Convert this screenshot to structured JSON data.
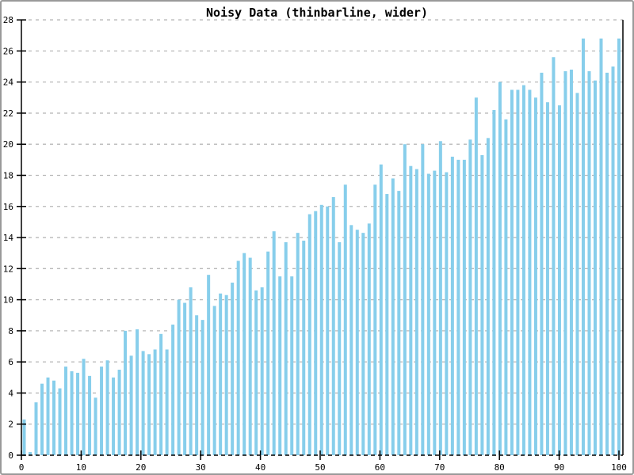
{
  "window": {
    "background": "#ffffff",
    "border_color": "#9a9a9a"
  },
  "chart_data": {
    "type": "bar",
    "title": "Noisy Data (thinbarline, wider)",
    "xlabel": "",
    "ylabel": "",
    "xlim": [
      0,
      100
    ],
    "ylim": [
      0,
      28
    ],
    "xticks": [
      0,
      10,
      20,
      30,
      40,
      50,
      60,
      70,
      80,
      90,
      100
    ],
    "yticks": [
      0,
      2,
      4,
      6,
      8,
      10,
      12,
      14,
      16,
      18,
      20,
      22,
      24,
      26,
      28
    ],
    "grid": "horizontal-dashed",
    "legend_position": "none",
    "bar_color": "#87CEEB",
    "grid_color": "#b8b8b8",
    "axis_color": "#000000",
    "x": [
      0,
      1,
      2,
      3,
      4,
      5,
      6,
      7,
      8,
      9,
      10,
      11,
      12,
      13,
      14,
      15,
      16,
      17,
      18,
      19,
      20,
      21,
      22,
      23,
      24,
      25,
      26,
      27,
      28,
      29,
      30,
      31,
      32,
      33,
      34,
      35,
      36,
      37,
      38,
      39,
      40,
      41,
      42,
      43,
      44,
      45,
      46,
      47,
      48,
      49,
      50,
      51,
      52,
      53,
      54,
      55,
      56,
      57,
      58,
      59,
      60,
      61,
      62,
      63,
      64,
      65,
      66,
      67,
      68,
      69,
      70,
      71,
      72,
      73,
      74,
      75,
      76,
      77,
      78,
      79,
      80,
      81,
      82,
      83,
      84,
      85,
      86,
      87,
      88,
      89,
      90,
      91,
      92,
      93,
      94,
      95,
      96,
      97,
      98,
      99,
      100
    ],
    "values": [
      2.3,
      0.2,
      3.4,
      4.6,
      5.0,
      4.8,
      4.3,
      5.7,
      5.4,
      5.3,
      6.2,
      5.1,
      3.7,
      5.7,
      6.1,
      5.0,
      5.5,
      8.0,
      6.4,
      8.1,
      6.7,
      6.5,
      6.8,
      7.8,
      6.8,
      8.4,
      10.0,
      9.8,
      10.8,
      9.0,
      8.7,
      11.6,
      9.6,
      10.4,
      10.3,
      11.1,
      12.5,
      13.0,
      12.7,
      10.6,
      10.8,
      13.1,
      14.4,
      11.5,
      13.7,
      11.5,
      14.3,
      13.8,
      15.5,
      15.7,
      16.1,
      16.0,
      16.6,
      13.7,
      17.4,
      14.8,
      14.5,
      14.3,
      14.9,
      17.4,
      18.7,
      16.8,
      17.8,
      17.0,
      20.0,
      18.6,
      18.4,
      20.0,
      18.1,
      18.3,
      20.2,
      18.2,
      19.2,
      19.0,
      19.0,
      20.3,
      23.0,
      19.3,
      20.4,
      22.2,
      24.0,
      21.6,
      23.5,
      23.5,
      23.8,
      23.5,
      23.0,
      24.6,
      22.7,
      25.6,
      22.5,
      24.7,
      24.8,
      23.3,
      26.8,
      24.7,
      24.1,
      26.8,
      24.6,
      25.0,
      26.8
    ]
  }
}
